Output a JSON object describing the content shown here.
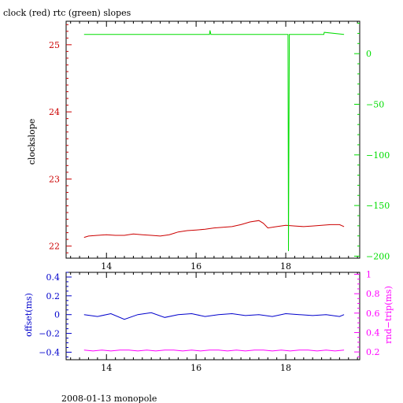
{
  "page": {
    "title": "clock (red) rtc (green) slopes",
    "footer": "2008-01-13 monopole"
  },
  "colors": {
    "clock": "#cc0000",
    "rtc": "#00dd00",
    "offset": "#0000cc",
    "rndtrip": "#ff00ff",
    "frame": "#000000"
  },
  "chart_data": [
    {
      "type": "line",
      "title": "clock (red) rtc (green) slopes",
      "xlabel": "",
      "x_ticks": [
        "14",
        "16",
        "18"
      ],
      "xlim": [
        13.1,
        19.65
      ],
      "left_axis": {
        "label": "clockslope",
        "ticks": [
          "22",
          "23",
          "24",
          "25"
        ],
        "ylim": [
          21.82,
          25.35
        ]
      },
      "right_axis": {
        "label": "",
        "ticks": [
          "0",
          "−50",
          "−100",
          "−150",
          "−200"
        ],
        "ylim": [
          -202,
          32
        ]
      },
      "series": [
        {
          "name": "clock",
          "axis": "left",
          "x": [
            13.5,
            13.6,
            13.8,
            14.0,
            14.2,
            14.4,
            14.6,
            14.8,
            15.0,
            15.2,
            15.4,
            15.5,
            15.6,
            15.8,
            16.0,
            16.2,
            16.4,
            16.6,
            16.8,
            17.0,
            17.2,
            17.4,
            17.5,
            17.6,
            17.8,
            18.0,
            18.2,
            18.4,
            18.6,
            18.8,
            19.0,
            19.2,
            19.3
          ],
          "y": [
            22.13,
            22.15,
            22.16,
            22.17,
            22.16,
            22.16,
            22.18,
            22.17,
            22.16,
            22.15,
            22.17,
            22.19,
            22.21,
            22.23,
            22.24,
            22.25,
            22.27,
            22.28,
            22.29,
            22.32,
            22.36,
            22.38,
            22.34,
            22.27,
            22.29,
            22.31,
            22.3,
            22.29,
            22.3,
            22.31,
            22.32,
            22.32,
            22.29
          ]
        },
        {
          "name": "rtc",
          "axis": "right",
          "x": [
            13.5,
            14.5,
            15.5,
            16.3,
            16.31,
            16.33,
            17.0,
            18.05,
            18.06,
            18.08,
            18.7,
            18.85,
            18.86,
            19.3
          ],
          "y": [
            19,
            19,
            19,
            19,
            23,
            19,
            19,
            19,
            -195,
            19,
            19,
            19,
            21,
            19
          ]
        }
      ]
    },
    {
      "type": "line",
      "x_ticks": [
        "14",
        "16",
        "18"
      ],
      "xlim": [
        13.1,
        19.65
      ],
      "left_axis": {
        "label": "offset(ms)",
        "ticks": [
          "0.4",
          "0.2",
          "0",
          "−0.2",
          "−0.4"
        ],
        "ylim": [
          -0.48,
          0.45
        ]
      },
      "right_axis": {
        "label": "rnd−trip(ms)",
        "ticks": [
          "1",
          "0.8",
          "0.6",
          "0.4",
          "0.2"
        ],
        "ylim": [
          0.12,
          1.02
        ]
      },
      "series": [
        {
          "name": "offset",
          "axis": "left",
          "x": [
            13.5,
            13.8,
            14.1,
            14.4,
            14.7,
            15.0,
            15.3,
            15.6,
            15.9,
            16.2,
            16.5,
            16.8,
            17.1,
            17.4,
            17.7,
            18.0,
            18.3,
            18.6,
            18.9,
            19.2,
            19.3
          ],
          "y": [
            0.0,
            -0.02,
            0.01,
            -0.05,
            0.0,
            0.02,
            -0.03,
            0.0,
            0.01,
            -0.02,
            0.0,
            0.01,
            -0.01,
            0.0,
            -0.02,
            0.01,
            0.0,
            -0.01,
            0.0,
            -0.02,
            0.0
          ]
        },
        {
          "name": "rndtrip",
          "axis": "right",
          "x": [
            13.5,
            13.7,
            13.9,
            14.1,
            14.3,
            14.5,
            14.7,
            14.9,
            15.1,
            15.3,
            15.5,
            15.7,
            15.9,
            16.1,
            16.3,
            16.5,
            16.7,
            16.9,
            17.1,
            17.3,
            17.5,
            17.7,
            17.9,
            18.1,
            18.3,
            18.5,
            18.7,
            18.9,
            19.1,
            19.3
          ],
          "y": [
            0.22,
            0.21,
            0.22,
            0.21,
            0.22,
            0.22,
            0.21,
            0.22,
            0.21,
            0.22,
            0.22,
            0.21,
            0.22,
            0.21,
            0.22,
            0.22,
            0.21,
            0.22,
            0.21,
            0.22,
            0.22,
            0.21,
            0.22,
            0.21,
            0.22,
            0.22,
            0.21,
            0.22,
            0.21,
            0.22
          ]
        }
      ]
    }
  ]
}
